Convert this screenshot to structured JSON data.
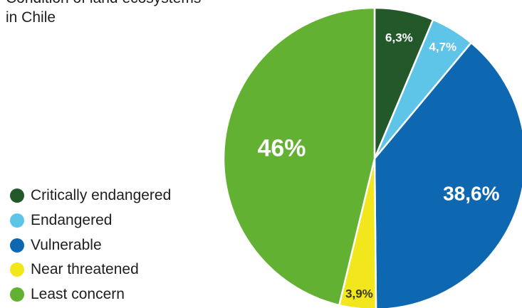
{
  "chart_data": {
    "type": "pie",
    "title_lines": [
      "Condition of land ecosystems",
      "in Chile"
    ],
    "legend_position": "left",
    "slices": [
      {
        "name": "Critically endangered",
        "value": 6.3,
        "label": "6,3%",
        "color": "#23582a",
        "label_color": "#ffffff"
      },
      {
        "name": "Endangered",
        "value": 4.7,
        "label": "4,7%",
        "color": "#5ec4e8",
        "label_color": "#ffffff"
      },
      {
        "name": "Vulnerable",
        "value": 38.6,
        "label": "38,6%",
        "color": "#0d68b1",
        "label_color": "#ffffff"
      },
      {
        "name": "Near threatened",
        "value": 3.9,
        "label": "3,9%",
        "color": "#f2e61c",
        "label_color": "#3a3a10"
      },
      {
        "name": "Least concern",
        "value": 46,
        "label": "46%",
        "color": "#62b133",
        "label_color": "#ffffff"
      }
    ]
  }
}
